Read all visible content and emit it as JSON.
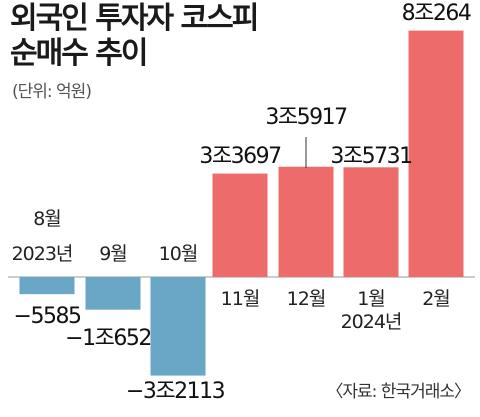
{
  "chart_data": {
    "type": "bar",
    "title": "외국인 투자자 코스피 순매수 추이",
    "title_lines": [
      "외국인 투자자 코스피",
      "순매수 추이"
    ],
    "unit": "(단위: 억원)",
    "source": "〈자료: 한국거래소〉",
    "categories": [
      "8월",
      "9월",
      "10월",
      "11월",
      "12월",
      "1월",
      "2월"
    ],
    "year_labels": [
      "2023년",
      "2024년"
    ],
    "values": [
      -5585,
      -10652,
      -32113,
      33697,
      35917,
      35731,
      80264
    ],
    "value_labels": [
      "−5585",
      "−1조652",
      "−3조2113",
      "3조3697",
      "3조5917",
      "3조5731",
      "8조264"
    ],
    "ylim": [
      -32113,
      80264
    ],
    "colors": {
      "positive": "#ee6b6b",
      "negative": "#6aa6c6"
    }
  }
}
